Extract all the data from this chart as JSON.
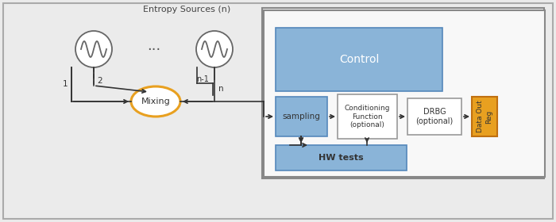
{
  "bg": "#ebebeb",
  "right_bg": "#f8f8f8",
  "blue_fill": "#8ab4d8",
  "white_fill": "#ffffff",
  "orange_fill": "#e8a020",
  "orange_ec": "#c07010",
  "mix_ec": "#e8a020",
  "ac": "#333333",
  "gray_box_bg": "#e8e8e8",
  "title": "Entropy Sources (n)",
  "ctrl": "Control",
  "samp": "sampling",
  "cond": "Conditioning\nFunction\n(optional)",
  "drbg": "DRBG\n(optional)",
  "dout": "Data Out\nReg",
  "hw": "HW tests",
  "mix": "Mixing",
  "l1": "1",
  "l2": "2",
  "ln1": "n-1",
  "ln": "n",
  "dots": "..."
}
